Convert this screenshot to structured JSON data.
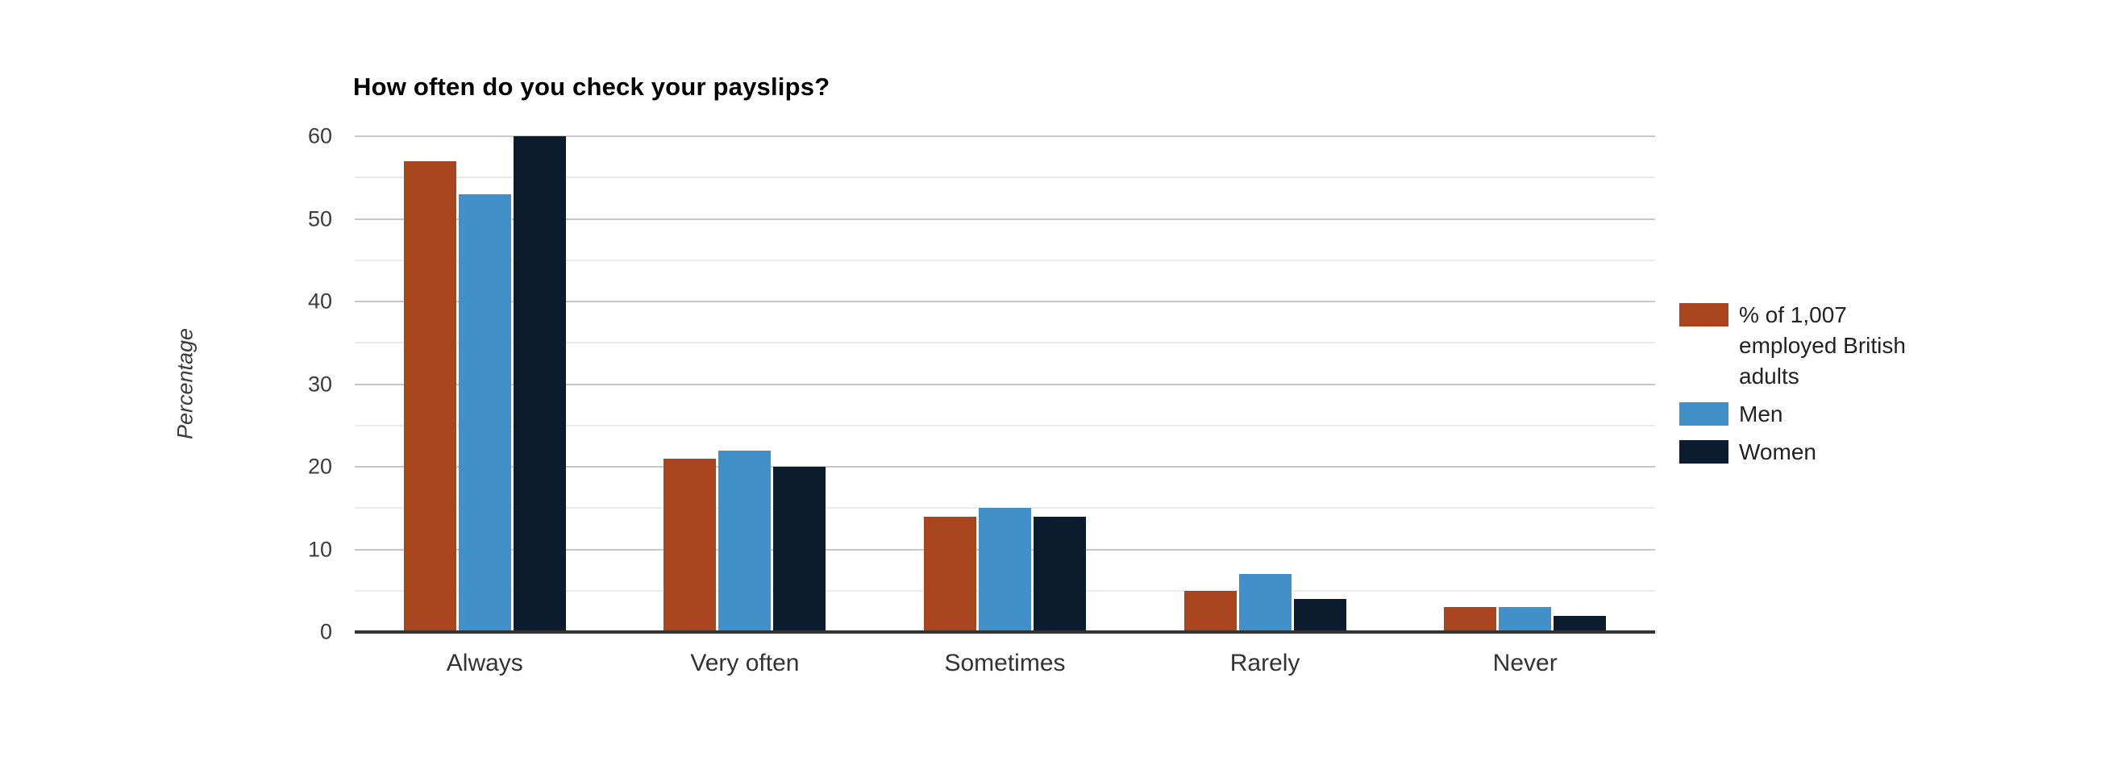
{
  "chart_data": {
    "type": "bar",
    "title": "How often do you check your payslips?",
    "xlabel": "",
    "ylabel": "Percentage",
    "categories": [
      "Always",
      "Very often",
      "Sometimes",
      "Rarely",
      "Never"
    ],
    "series": [
      {
        "name": "% of 1,007 employed British adults",
        "legend_lines": [
          "% of 1,007",
          "employed British",
          "adults"
        ],
        "color": "#A8451F",
        "values": [
          57,
          21,
          14,
          5,
          3
        ]
      },
      {
        "name": "Men",
        "legend_lines": [
          "Men"
        ],
        "color": "#4290CA",
        "values": [
          53,
          22,
          15,
          7,
          3
        ]
      },
      {
        "name": "Women",
        "legend_lines": [
          "Women"
        ],
        "color": "#0B1C2E",
        "values": [
          60,
          20,
          14,
          4,
          2
        ]
      }
    ],
    "ylim": [
      0,
      60
    ],
    "yticks": [
      0,
      10,
      20,
      30,
      40,
      50,
      60
    ],
    "minor_ytick_step": 5,
    "grid": true,
    "legend_position": "right"
  },
  "colors": {
    "background": "#ffffff",
    "title_text": "#000000",
    "axis_text": "#3C3C3C",
    "category_text": "#333333",
    "legend_text": "#222222",
    "major_gridline": "#C8C8C8",
    "minor_gridline": "#EAEAEA",
    "axis_line": "#333333"
  }
}
